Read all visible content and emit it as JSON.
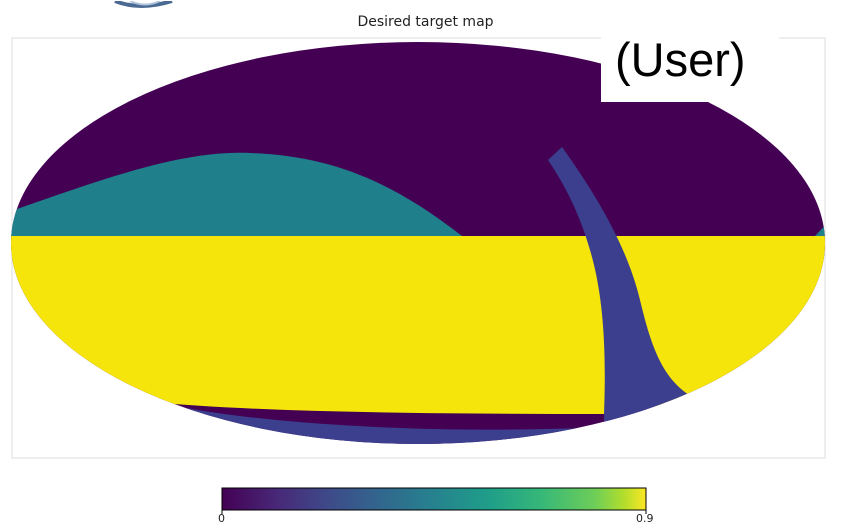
{
  "chart_data": {
    "type": "heatmap",
    "projection": "mollweide",
    "title": "Desired target map",
    "regions": [
      {
        "id": "north-cap",
        "value": 0.0
      },
      {
        "id": "northern-arc",
        "value": 0.45
      },
      {
        "id": "equatorial-band",
        "value": 0.9
      },
      {
        "id": "diagonal-stripe",
        "value": 0.1
      },
      {
        "id": "southern-cap",
        "value": 0.1
      }
    ],
    "colorbar": {
      "min": 0,
      "max": 0.9,
      "min_label": "0",
      "max_label": "0.9",
      "colormap": "viridis"
    },
    "colors": {
      "level_0": "#440154",
      "level_01": "#3b3f8d",
      "level_045": "#1f7f8b",
      "level_09": "#f6e50b"
    }
  },
  "overlay": {
    "label": "(User)"
  }
}
